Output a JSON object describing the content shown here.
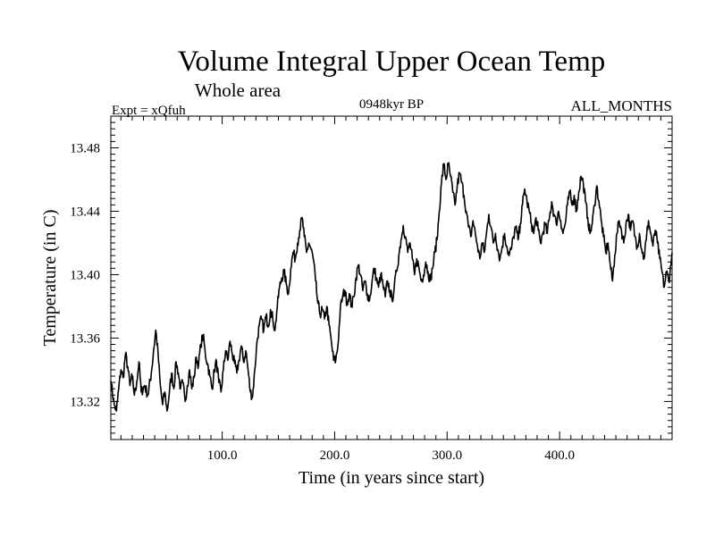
{
  "chart_data": {
    "type": "line",
    "title": "Volume Integral Upper Ocean Temp",
    "subtitle": "Whole area",
    "annotations": {
      "left": "Expt = xQfuh",
      "center": "0948kyr BP",
      "right": "ALL_MONTHS"
    },
    "xlabel": "Time (in years since start)",
    "ylabel": "Temperature (in C)",
    "xlim": [
      1,
      500
    ],
    "ylim": [
      13.296,
      13.5
    ],
    "xticks": [
      100.0,
      200.0,
      300.0,
      400.0
    ],
    "xtick_labels": [
      "100.0",
      "200.0",
      "300.0",
      "400.0"
    ],
    "yticks": [
      13.32,
      13.36,
      13.4,
      13.44,
      13.48
    ],
    "ytick_labels": [
      "13.32",
      "13.36",
      "13.40",
      "13.44",
      "13.48"
    ],
    "grid": false,
    "series": [
      {
        "name": "Volume Integral Upper Ocean Temp",
        "anchors": [
          [
            1,
            13.333
          ],
          [
            4,
            13.318
          ],
          [
            6,
            13.314
          ],
          [
            8,
            13.328
          ],
          [
            10,
            13.34
          ],
          [
            12,
            13.335
          ],
          [
            14,
            13.35
          ],
          [
            16,
            13.342
          ],
          [
            18,
            13.33
          ],
          [
            20,
            13.336
          ],
          [
            22,
            13.324
          ],
          [
            24,
            13.332
          ],
          [
            26,
            13.345
          ],
          [
            28,
            13.326
          ],
          [
            31,
            13.33
          ],
          [
            34,
            13.324
          ],
          [
            37,
            13.338
          ],
          [
            39,
            13.352
          ],
          [
            41,
            13.365
          ],
          [
            43,
            13.35
          ],
          [
            45,
            13.33
          ],
          [
            47,
            13.318
          ],
          [
            49,
            13.326
          ],
          [
            51,
            13.314
          ],
          [
            53,
            13.325
          ],
          [
            55,
            13.338
          ],
          [
            57,
            13.328
          ],
          [
            59,
            13.345
          ],
          [
            61,
            13.338
          ],
          [
            63,
            13.328
          ],
          [
            65,
            13.332
          ],
          [
            67,
            13.32
          ],
          [
            69,
            13.33
          ],
          [
            71,
            13.34
          ],
          [
            73,
            13.328
          ],
          [
            75,
            13.335
          ],
          [
            77,
            13.348
          ],
          [
            79,
            13.343
          ],
          [
            81,
            13.356
          ],
          [
            83,
            13.362
          ],
          [
            85,
            13.35
          ],
          [
            87,
            13.344
          ],
          [
            89,
            13.336
          ],
          [
            91,
            13.328
          ],
          [
            93,
            13.34
          ],
          [
            95,
            13.345
          ],
          [
            97,
            13.332
          ],
          [
            99,
            13.326
          ],
          [
            101,
            13.34
          ],
          [
            103,
            13.352
          ],
          [
            105,
            13.346
          ],
          [
            107,
            13.358
          ],
          [
            109,
            13.35
          ],
          [
            111,
            13.344
          ],
          [
            113,
            13.338
          ],
          [
            115,
            13.346
          ],
          [
            117,
            13.355
          ],
          [
            119,
            13.345
          ],
          [
            121,
            13.352
          ],
          [
            123,
            13.34
          ],
          [
            125,
            13.326
          ],
          [
            127,
            13.323
          ],
          [
            129,
            13.34
          ],
          [
            131,
            13.358
          ],
          [
            133,
            13.368
          ],
          [
            135,
            13.372
          ],
          [
            137,
            13.365
          ],
          [
            139,
            13.374
          ],
          [
            141,
            13.368
          ],
          [
            143,
            13.378
          ],
          [
            145,
            13.372
          ],
          [
            147,
            13.365
          ],
          [
            149,
            13.38
          ],
          [
            151,
            13.392
          ],
          [
            153,
            13.398
          ],
          [
            155,
            13.402
          ],
          [
            157,
            13.394
          ],
          [
            159,
            13.388
          ],
          [
            161,
            13.404
          ],
          [
            163,
            13.414
          ],
          [
            165,
            13.41
          ],
          [
            167,
            13.42
          ],
          [
            169,
            13.428
          ],
          [
            171,
            13.436
          ],
          [
            173,
            13.424
          ],
          [
            175,
            13.414
          ],
          [
            177,
            13.42
          ],
          [
            179,
            13.416
          ],
          [
            181,
            13.41
          ],
          [
            183,
            13.396
          ],
          [
            185,
            13.382
          ],
          [
            187,
            13.375
          ],
          [
            189,
            13.378
          ],
          [
            191,
            13.372
          ],
          [
            193,
            13.38
          ],
          [
            195,
            13.368
          ],
          [
            197,
            13.358
          ],
          [
            199,
            13.346
          ],
          [
            201,
            13.346
          ],
          [
            203,
            13.356
          ],
          [
            205,
            13.378
          ],
          [
            207,
            13.386
          ],
          [
            209,
            13.39
          ],
          [
            211,
            13.382
          ],
          [
            213,
            13.388
          ],
          [
            215,
            13.38
          ],
          [
            217,
            13.386
          ],
          [
            219,
            13.398
          ],
          [
            221,
            13.406
          ],
          [
            223,
            13.4
          ],
          [
            225,
            13.39
          ],
          [
            227,
            13.396
          ],
          [
            229,
            13.388
          ],
          [
            231,
            13.384
          ],
          [
            233,
            13.394
          ],
          [
            235,
            13.404
          ],
          [
            237,
            13.398
          ],
          [
            239,
            13.392
          ],
          [
            241,
            13.4
          ],
          [
            243,
            13.393
          ],
          [
            245,
            13.386
          ],
          [
            247,
            13.396
          ],
          [
            249,
            13.39
          ],
          [
            251,
            13.384
          ],
          [
            253,
            13.392
          ],
          [
            255,
            13.402
          ],
          [
            257,
            13.412
          ],
          [
            259,
            13.422
          ],
          [
            261,
            13.431
          ],
          [
            263,
            13.424
          ],
          [
            265,
            13.414
          ],
          [
            267,
            13.42
          ],
          [
            269,
            13.41
          ],
          [
            271,
            13.4
          ],
          [
            273,
            13.41
          ],
          [
            275,
            13.404
          ],
          [
            277,
            13.396
          ],
          [
            279,
            13.4
          ],
          [
            281,
            13.408
          ],
          [
            283,
            13.402
          ],
          [
            285,
            13.396
          ],
          [
            287,
            13.404
          ],
          [
            289,
            13.414
          ],
          [
            291,
            13.422
          ],
          [
            293,
            13.44
          ],
          [
            295,
            13.458
          ],
          [
            297,
            13.47
          ],
          [
            299,
            13.46
          ],
          [
            301,
            13.47
          ],
          [
            303,
            13.462
          ],
          [
            305,
            13.452
          ],
          [
            307,
            13.444
          ],
          [
            309,
            13.456
          ],
          [
            311,
            13.464
          ],
          [
            313,
            13.458
          ],
          [
            315,
            13.45
          ],
          [
            317,
            13.44
          ],
          [
            319,
            13.43
          ],
          [
            321,
            13.424
          ],
          [
            323,
            13.434
          ],
          [
            325,
            13.426
          ],
          [
            327,
            13.418
          ],
          [
            329,
            13.41
          ],
          [
            331,
            13.42
          ],
          [
            333,
            13.414
          ],
          [
            335,
            13.426
          ],
          [
            337,
            13.438
          ],
          [
            339,
            13.43
          ],
          [
            341,
            13.42
          ],
          [
            343,
            13.426
          ],
          [
            345,
            13.416
          ],
          [
            347,
            13.41
          ],
          [
            349,
            13.418
          ],
          [
            351,
            13.426
          ],
          [
            353,
            13.418
          ],
          [
            355,
            13.412
          ],
          [
            357,
            13.416
          ],
          [
            359,
            13.424
          ],
          [
            361,
            13.43
          ],
          [
            363,
            13.422
          ],
          [
            365,
            13.432
          ],
          [
            367,
            13.444
          ],
          [
            369,
            13.454
          ],
          [
            371,
            13.446
          ],
          [
            373,
            13.44
          ],
          [
            375,
            13.432
          ],
          [
            377,
            13.426
          ],
          [
            379,
            13.436
          ],
          [
            381,
            13.428
          ],
          [
            383,
            13.42
          ],
          [
            385,
            13.426
          ],
          [
            387,
            13.432
          ],
          [
            389,
            13.426
          ],
          [
            391,
            13.436
          ],
          [
            393,
            13.446
          ],
          [
            395,
            13.438
          ],
          [
            397,
            13.432
          ],
          [
            399,
            13.44
          ],
          [
            401,
            13.434
          ],
          [
            403,
            13.426
          ],
          [
            405,
            13.432
          ],
          [
            407,
            13.444
          ],
          [
            409,
            13.452
          ],
          [
            411,
            13.444
          ],
          [
            413,
            13.45
          ],
          [
            415,
            13.44
          ],
          [
            417,
            13.452
          ],
          [
            419,
            13.462
          ],
          [
            421,
            13.458
          ],
          [
            423,
            13.446
          ],
          [
            425,
            13.436
          ],
          [
            427,
            13.426
          ],
          [
            429,
            13.432
          ],
          [
            431,
            13.444
          ],
          [
            433,
            13.456
          ],
          [
            435,
            13.446
          ],
          [
            437,
            13.434
          ],
          [
            439,
            13.424
          ],
          [
            441,
            13.414
          ],
          [
            443,
            13.42
          ],
          [
            445,
            13.406
          ],
          [
            447,
            13.396
          ],
          [
            449,
            13.412
          ],
          [
            451,
            13.426
          ],
          [
            453,
            13.434
          ],
          [
            455,
            13.428
          ],
          [
            457,
            13.42
          ],
          [
            459,
            13.432
          ],
          [
            461,
            13.438
          ],
          [
            463,
            13.428
          ],
          [
            465,
            13.434
          ],
          [
            467,
            13.424
          ],
          [
            469,
            13.418
          ],
          [
            471,
            13.426
          ],
          [
            473,
            13.416
          ],
          [
            475,
            13.41
          ],
          [
            477,
            13.422
          ],
          [
            479,
            13.434
          ],
          [
            481,
            13.426
          ],
          [
            483,
            13.418
          ],
          [
            485,
            13.428
          ],
          [
            487,
            13.42
          ],
          [
            489,
            13.41
          ],
          [
            491,
            13.402
          ],
          [
            493,
            13.392
          ],
          [
            495,
            13.402
          ],
          [
            497,
            13.396
          ],
          [
            499,
            13.406
          ],
          [
            500,
            13.414
          ]
        ],
        "noise_amplitude": 0.0035
      }
    ]
  }
}
